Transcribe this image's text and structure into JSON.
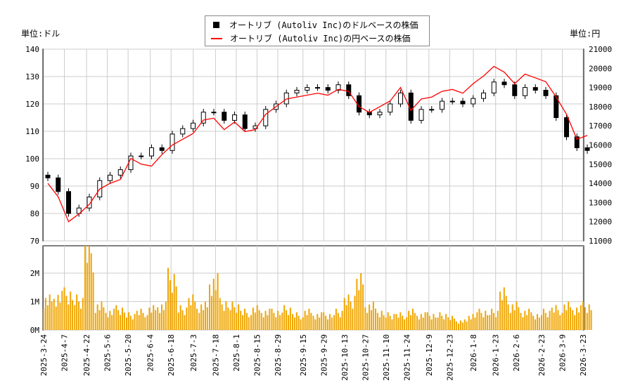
{
  "chart_data": [
    {
      "type": "candlestick+line",
      "left_unit": "単位:ドル",
      "right_unit": "単位:円",
      "legend": [
        {
          "name": "オートリブ (Autoliv Inc)のドルベースの株価",
          "color": "#000000",
          "marker": "square"
        },
        {
          "name": "オートリブ (Autoliv Inc)の円ベースの株価",
          "color": "#ff0000",
          "marker": "line"
        }
      ],
      "legend_placement": "top-center",
      "grid": true,
      "ylim_left": [
        70,
        140
      ],
      "yticks_left": [
        70,
        80,
        90,
        100,
        110,
        120,
        130,
        140
      ],
      "ylim_right": [
        11000,
        21000
      ],
      "yticks_right": [
        11000,
        12000,
        13000,
        14000,
        15000,
        16000,
        17000,
        18000,
        19000,
        20000,
        21000
      ],
      "dates": [
        "2025-03-24",
        "2025-03-31",
        "2025-04-07",
        "2025-04-14",
        "2025-04-21",
        "2025-04-28",
        "2025-05-05",
        "2025-05-12",
        "2025-05-19",
        "2025-05-26",
        "2025-06-02",
        "2025-06-09",
        "2025-06-16",
        "2025-06-23",
        "2025-06-30",
        "2025-07-07",
        "2025-07-14",
        "2025-07-21",
        "2025-07-28",
        "2025-08-04",
        "2025-08-11",
        "2025-08-18",
        "2025-08-25",
        "2025-09-01",
        "2025-09-08",
        "2025-09-15",
        "2025-09-22",
        "2025-09-29",
        "2025-10-06",
        "2025-10-13",
        "2025-10-20",
        "2025-10-27",
        "2025-11-03",
        "2025-11-10",
        "2025-11-17",
        "2025-11-24",
        "2025-12-01",
        "2025-12-08",
        "2025-12-15",
        "2025-12-22",
        "2025-12-29",
        "2026-01-05",
        "2026-01-12",
        "2026-01-19",
        "2026-01-26",
        "2026-02-02",
        "2026-02-09",
        "2026-02-16",
        "2026-02-23",
        "2026-03-02",
        "2026-03-09",
        "2026-03-16",
        "2026-03-23"
      ],
      "usd_close": [
        93,
        88,
        80,
        82,
        86,
        92,
        94,
        96,
        101,
        101,
        104,
        103,
        109,
        111,
        113,
        117,
        117,
        114,
        116,
        111,
        112,
        118,
        120,
        124,
        125,
        126,
        126,
        125,
        127,
        123,
        117,
        116,
        117,
        120,
        124,
        114,
        118,
        118,
        121,
        121,
        120,
        122,
        124,
        128,
        127,
        123,
        126,
        125,
        123,
        115,
        108,
        104,
        103
      ],
      "jpy_close": [
        14000,
        13300,
        12000,
        12400,
        12900,
        13700,
        14000,
        14200,
        15300,
        15000,
        14900,
        15500,
        16000,
        16300,
        16600,
        17300,
        17400,
        16800,
        17200,
        16700,
        16800,
        17600,
        18000,
        18400,
        18500,
        18600,
        18700,
        18600,
        18900,
        18800,
        18000,
        17700,
        18000,
        18300,
        19000,
        17800,
        18400,
        18500,
        18800,
        18900,
        18700,
        19200,
        19600,
        20100,
        19800,
        19200,
        19700,
        19500,
        19300,
        18500,
        17600,
        16300,
        16500
      ]
    },
    {
      "type": "bar",
      "yticks": [
        "0M",
        "1M",
        "2M"
      ],
      "color": "#f0a500",
      "volume_millions": [
        1.0,
        1.1,
        1.2,
        1.0,
        2.7,
        0.8,
        0.6,
        0.7,
        0.5,
        0.6,
        0.7,
        0.8,
        1.75,
        0.7,
        1.0,
        0.8,
        1.6,
        0.9,
        0.8,
        0.6,
        0.7,
        0.6,
        0.6,
        0.7,
        0.5,
        0.6,
        0.5,
        0.5,
        0.6,
        1.0,
        1.6,
        0.8,
        0.6,
        0.5,
        0.5,
        0.6,
        0.5,
        0.5,
        0.5,
        0.4,
        0.3,
        0.5,
        0.6,
        0.6,
        1.2,
        0.8,
        0.6,
        0.5,
        0.6,
        0.7,
        0.8,
        0.7,
        0.8
      ]
    }
  ],
  "x_labels": [
    "2025-3-24",
    "2025-4-7",
    "2025-4-22",
    "2025-5-6",
    "2025-5-20",
    "2025-6-4",
    "2025-6-18",
    "2025-7-3",
    "2025-7-18",
    "2025-8-1",
    "2025-8-15",
    "2025-8-29",
    "2025-9-15",
    "2025-9-29",
    "2025-10-13",
    "2025-10-27",
    "2025-11-10",
    "2025-11-24",
    "2025-12-9",
    "2025-12-23",
    "2026-1-8",
    "2026-1-23",
    "2026-2-6",
    "2026-2-23",
    "2026-3-9",
    "2026-3-23"
  ]
}
